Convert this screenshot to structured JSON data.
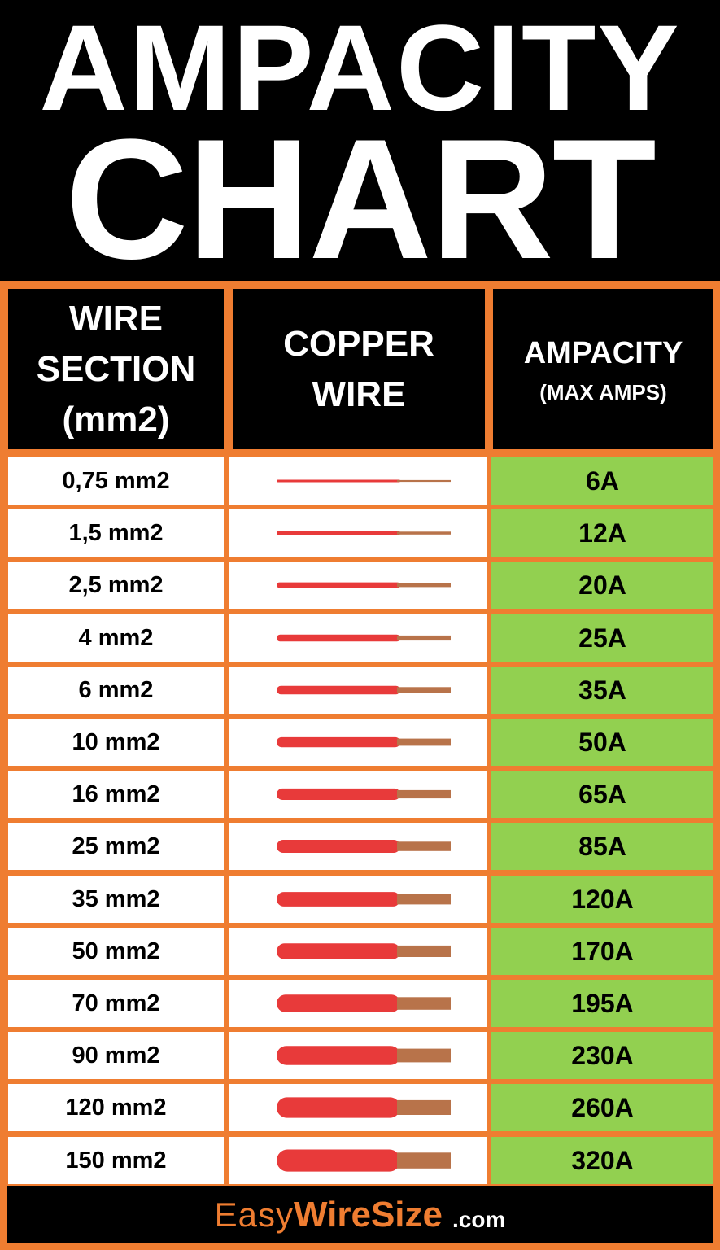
{
  "title": {
    "line1": "AMPACITY",
    "line2": "CHART"
  },
  "chart_data": {
    "type": "table",
    "columns": [
      {
        "lines": [
          "WIRE",
          "SECTION",
          "(mm2)"
        ]
      },
      {
        "lines": [
          "COPPER",
          "WIRE"
        ]
      },
      {
        "lines": [
          "AMPACITY",
          "(MAX AMPS)"
        ]
      }
    ],
    "rows": [
      {
        "section": "0,75 mm2",
        "ampacity": "6A"
      },
      {
        "section": "1,5 mm2",
        "ampacity": "12A"
      },
      {
        "section": "2,5 mm2",
        "ampacity": "20A"
      },
      {
        "section": "4 mm2",
        "ampacity": "25A"
      },
      {
        "section": "6 mm2",
        "ampacity": "35A"
      },
      {
        "section": "10 mm2",
        "ampacity": "50A"
      },
      {
        "section": "16 mm2",
        "ampacity": "65A"
      },
      {
        "section": "25 mm2",
        "ampacity": "85A"
      },
      {
        "section": "35 mm2",
        "ampacity": "120A"
      },
      {
        "section": "50 mm2",
        "ampacity": "170A"
      },
      {
        "section": "70 mm2",
        "ampacity": "195A"
      },
      {
        "section": "90 mm2",
        "ampacity": "230A"
      },
      {
        "section": "120 mm2",
        "ampacity": "260A"
      },
      {
        "section": "150 mm2",
        "ampacity": "320A"
      }
    ]
  },
  "footer": {
    "brand_part1": "Easy",
    "brand_part2": "WireSize",
    "brand_suffix": ".com"
  },
  "colors": {
    "frame": "#ef7d31",
    "header_bg": "#000000",
    "ampacity_cell": "#92d050",
    "wire_insulation": "#e83a3a",
    "copper": "#b8734a"
  }
}
